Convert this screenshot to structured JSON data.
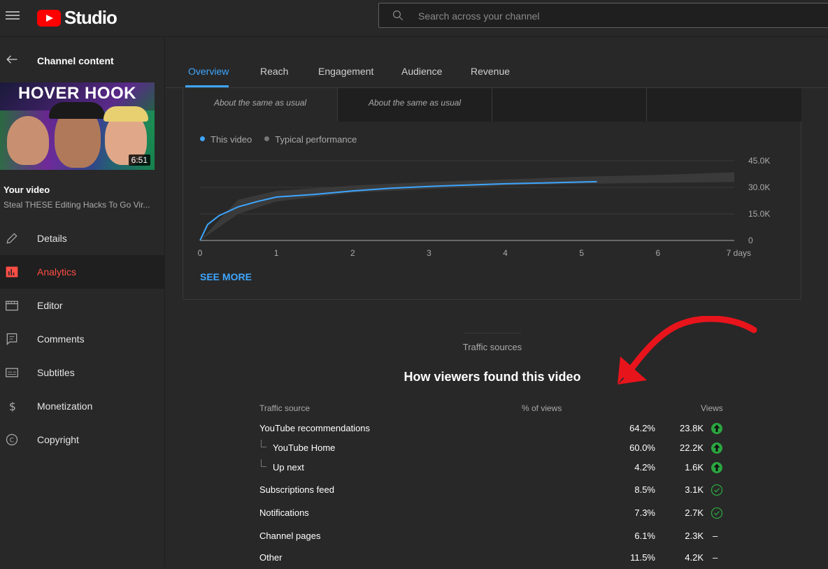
{
  "header": {
    "logo_text": "Studio",
    "search_placeholder": "Search across your channel"
  },
  "sidebar": {
    "back_label": "Channel content",
    "thumbnail_title": "HOVER HOOK",
    "duration": "6:51",
    "your_video_label": "Your video",
    "video_title": "Steal THESE Editing Hacks To Go Vir...",
    "items": [
      {
        "label": "Details",
        "icon": "pencil-icon"
      },
      {
        "label": "Analytics",
        "icon": "analytics-icon",
        "active": true
      },
      {
        "label": "Editor",
        "icon": "editor-icon"
      },
      {
        "label": "Comments",
        "icon": "comments-icon"
      },
      {
        "label": "Subtitles",
        "icon": "subtitles-icon"
      },
      {
        "label": "Monetization",
        "icon": "dollar-icon"
      },
      {
        "label": "Copyright",
        "icon": "copyright-icon"
      }
    ]
  },
  "tabs": [
    {
      "label": "Overview",
      "active": true
    },
    {
      "label": "Reach"
    },
    {
      "label": "Engagement"
    },
    {
      "label": "Audience"
    },
    {
      "label": "Revenue"
    }
  ],
  "stats": {
    "notes": [
      "About the same as usual",
      "About the same as usual"
    ]
  },
  "chart_legend": {
    "this_video": "This video",
    "typical": "Typical performance"
  },
  "chart_data": {
    "type": "line",
    "x": [
      0,
      0.1,
      0.25,
      0.5,
      0.75,
      1,
      1.5,
      2,
      2.5,
      3,
      3.5,
      4,
      4.5,
      5,
      5.2
    ],
    "series": [
      {
        "name": "This video",
        "values": [
          0,
          9000,
          14000,
          19000,
          22000,
          24500,
          26000,
          28000,
          29500,
          30500,
          31300,
          32000,
          32500,
          33000,
          33200
        ]
      }
    ],
    "typical_band": {
      "x": [
        0,
        0.5,
        1,
        2,
        3,
        4,
        5,
        6,
        7
      ],
      "low": [
        0,
        15000,
        22000,
        27000,
        29000,
        31000,
        32000,
        32500,
        33000
      ],
      "high": [
        0,
        23000,
        28000,
        31000,
        33000,
        34500,
        36000,
        37000,
        38500
      ]
    },
    "x_ticks": [
      "0",
      "1",
      "2",
      "3",
      "4",
      "5",
      "6",
      "7 days"
    ],
    "y_ticks": [
      "0",
      "15.0K",
      "30.0K",
      "45.0K"
    ],
    "xlim": [
      0,
      7
    ],
    "ylim": [
      0,
      45000
    ],
    "colors": {
      "this_video": "#3ea6ff",
      "typical": "#3a3a3a"
    }
  },
  "see_more": "SEE MORE",
  "traffic": {
    "section_label": "Traffic sources",
    "heading": "How viewers found this video",
    "headers": {
      "source": "Traffic source",
      "pct": "% of views",
      "views": "Views"
    },
    "rows": [
      {
        "name": "YouTube recommendations",
        "pct": "64.2%",
        "views": "23.8K",
        "indicator": "up-arrow-icon",
        "indent": false
      },
      {
        "name": "YouTube Home",
        "pct": "60.0%",
        "views": "22.2K",
        "indicator": "up-arrow-icon",
        "indent": true
      },
      {
        "name": "Up next",
        "pct": "4.2%",
        "views": "1.6K",
        "indicator": "up-arrow-icon",
        "indent": true
      },
      {
        "name": "Subscriptions feed",
        "pct": "8.5%",
        "views": "3.1K",
        "indicator": "check-icon",
        "indent": false
      },
      {
        "name": "Notifications",
        "pct": "7.3%",
        "views": "2.7K",
        "indicator": "check-icon",
        "indent": false
      },
      {
        "name": "Channel pages",
        "pct": "6.1%",
        "views": "2.3K",
        "indicator": "dash",
        "indent": false
      },
      {
        "name": "Other",
        "pct": "11.5%",
        "views": "4.2K",
        "indicator": "dash",
        "indent": false
      }
    ],
    "dash": "–"
  },
  "colors": {
    "accent": "#3ea6ff",
    "active_nav": "#ff4e45",
    "up": "#2ba640",
    "annotation_arrow": "#e8141c"
  }
}
